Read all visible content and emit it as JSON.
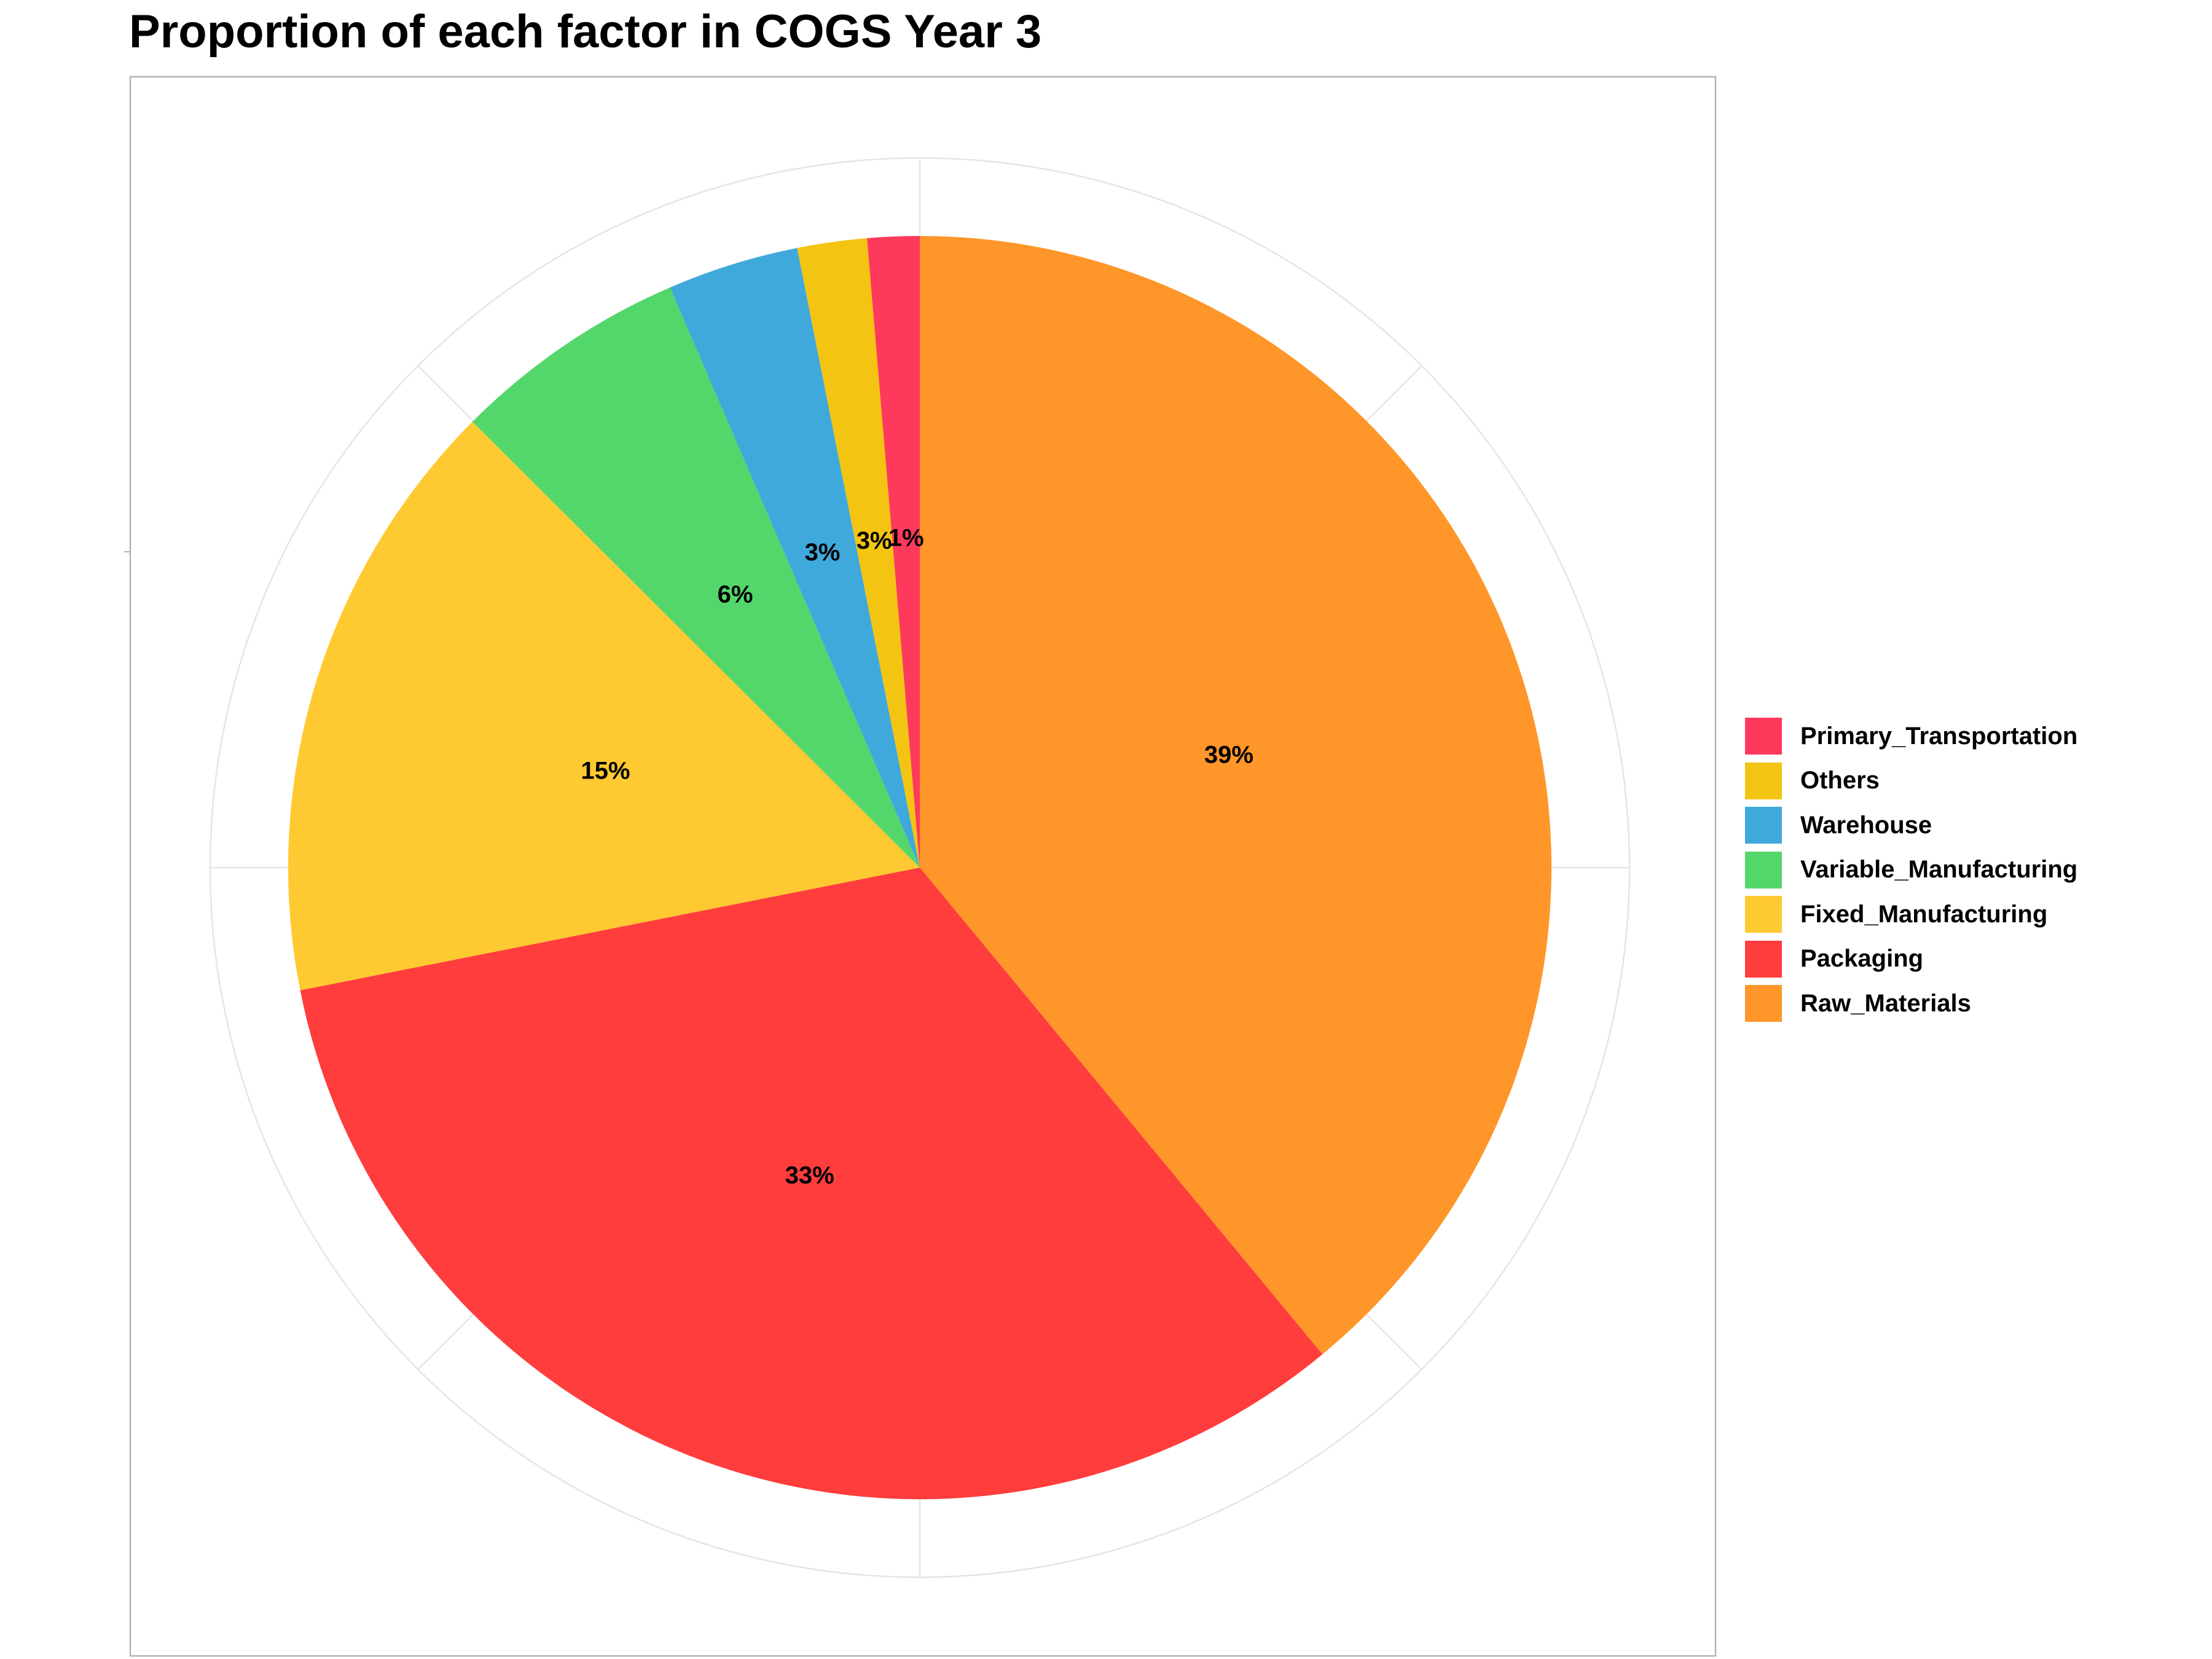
{
  "chart_data": {
    "type": "pie",
    "title": "Proportion of each factor in COGS Year 3",
    "slices": [
      {
        "name": "Raw_Materials",
        "value": 39,
        "label": "39%",
        "color": "#FE9629"
      },
      {
        "name": "Packaging",
        "value": 33,
        "label": "33%",
        "color": "#FE3D3C"
      },
      {
        "name": "Fixed_Manufacturing",
        "value": 15,
        "label": "15%",
        "color": "#FFC931"
      },
      {
        "name": "Variable_Manufacturing",
        "value": 6,
        "label": "6%",
        "color": "#53D76B"
      },
      {
        "name": "Warehouse",
        "value": 3,
        "label": "3%",
        "color": "#3FA9DB"
      },
      {
        "name": "Others",
        "value": 3,
        "label": "3%",
        "color": "#F4C412"
      },
      {
        "name": "Primary_Transportation",
        "value": 1,
        "label": "1%",
        "color": "#FE3A5C"
      }
    ],
    "slice_angles_deg": [
      [
        0,
        140.4
      ],
      [
        140.4,
        258.8
      ],
      [
        258.8,
        314.9
      ],
      [
        314.9,
        336.7
      ],
      [
        336.7,
        348.8
      ],
      [
        348.8,
        355.2
      ],
      [
        355.2,
        360
      ]
    ],
    "legend": {
      "position": "right",
      "order": [
        "Primary_Transportation",
        "Others",
        "Warehouse",
        "Variable_Manufacturing",
        "Fixed_Manufacturing",
        "Packaging",
        "Raw_Materials"
      ]
    },
    "grid": true
  }
}
